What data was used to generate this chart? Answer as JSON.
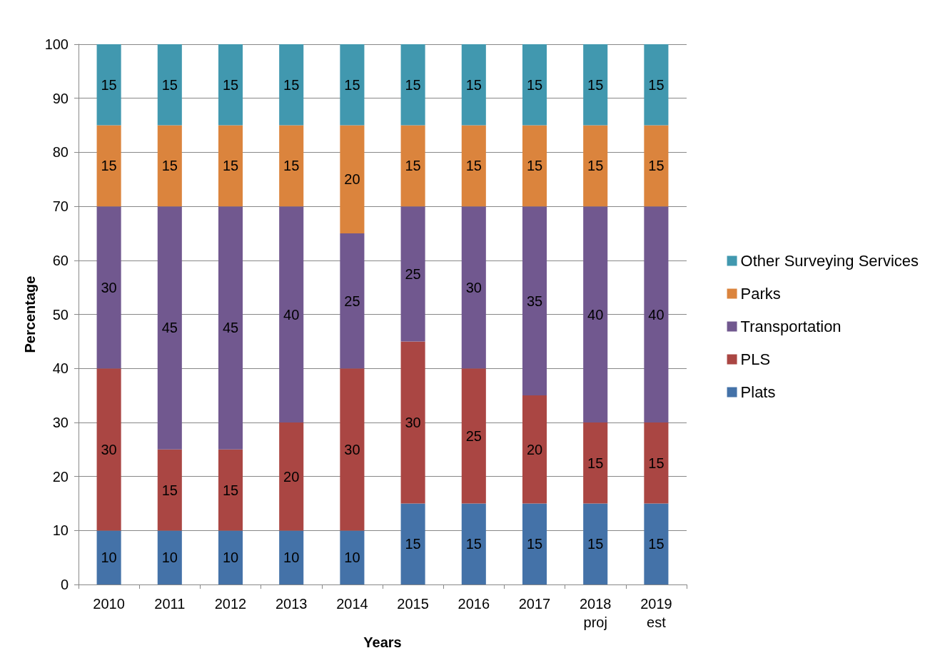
{
  "chart_data": {
    "type": "bar",
    "stacked": true,
    "xlabel": "Years",
    "ylabel": "Percentage",
    "categories": [
      "2010",
      "2011",
      "2012",
      "2013",
      "2014",
      "2015",
      "2016",
      "2017",
      "2018\nproj",
      "2019\nest"
    ],
    "series": [
      {
        "name": "Plats",
        "color": "#4472a8",
        "values": [
          10,
          10,
          10,
          10,
          10,
          15,
          15,
          15,
          15,
          15
        ]
      },
      {
        "name": "PLS",
        "color": "#aa4643",
        "values": [
          30,
          15,
          15,
          20,
          30,
          30,
          25,
          20,
          15,
          15
        ]
      },
      {
        "name": "Transportation",
        "color": "#71588f",
        "values": [
          30,
          45,
          45,
          40,
          25,
          25,
          30,
          35,
          40,
          40
        ]
      },
      {
        "name": "Parks",
        "color": "#db843d",
        "values": [
          15,
          15,
          15,
          15,
          20,
          15,
          15,
          15,
          15,
          15
        ]
      },
      {
        "name": "Other Surveying Services",
        "color": "#4198af",
        "values": [
          15,
          15,
          15,
          15,
          15,
          15,
          15,
          15,
          15,
          15
        ]
      }
    ],
    "ylim": [
      0,
      100
    ],
    "yticks": [
      0,
      10,
      20,
      30,
      40,
      50,
      60,
      70,
      80,
      90,
      100
    ],
    "grid": "y",
    "legend": "right",
    "data_labels": true
  }
}
